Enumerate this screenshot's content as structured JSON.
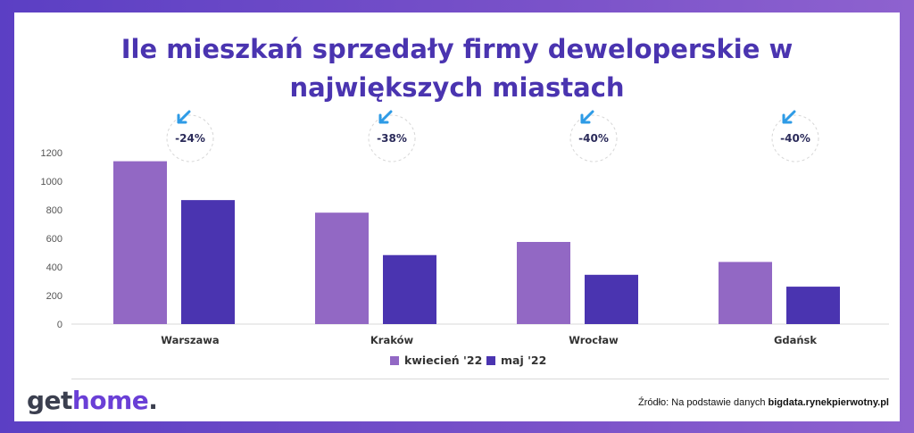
{
  "title_line1": "Ile mieszkań sprzedały firmy deweloperskie w",
  "title_line2": "największych miastach",
  "colors": {
    "kwiecien": "#9268c4",
    "maj": "#4a34b0",
    "arrow": "#2e9be6",
    "title": "#4a34b0"
  },
  "chart_data": {
    "type": "bar",
    "title": "Ile mieszkań sprzedały firmy deweloperskie w największych miastach",
    "xlabel": "",
    "ylabel": "",
    "ylim": [
      0,
      1200
    ],
    "yticks": [
      0,
      200,
      400,
      600,
      800,
      1000,
      1200
    ],
    "grid": false,
    "legend": "bottom",
    "categories": [
      "Warszawa",
      "Kraków",
      "Wrocław",
      "Gdańsk"
    ],
    "series": [
      {
        "name": "kwiecień '22",
        "values": [
          1140,
          780,
          575,
          435
        ]
      },
      {
        "name": "maj '22",
        "values": [
          868,
          483,
          345,
          262
        ]
      }
    ],
    "annotations": [
      "-24%",
      "-38%",
      "-40%",
      "-40%"
    ]
  },
  "footer": {
    "logo_part1": "get",
    "logo_part2": "home",
    "logo_part3": ".",
    "source_prefix": "Źródło: Na podstawie danych ",
    "source_bold": "bigdata.rynekpierwotny.pl"
  }
}
